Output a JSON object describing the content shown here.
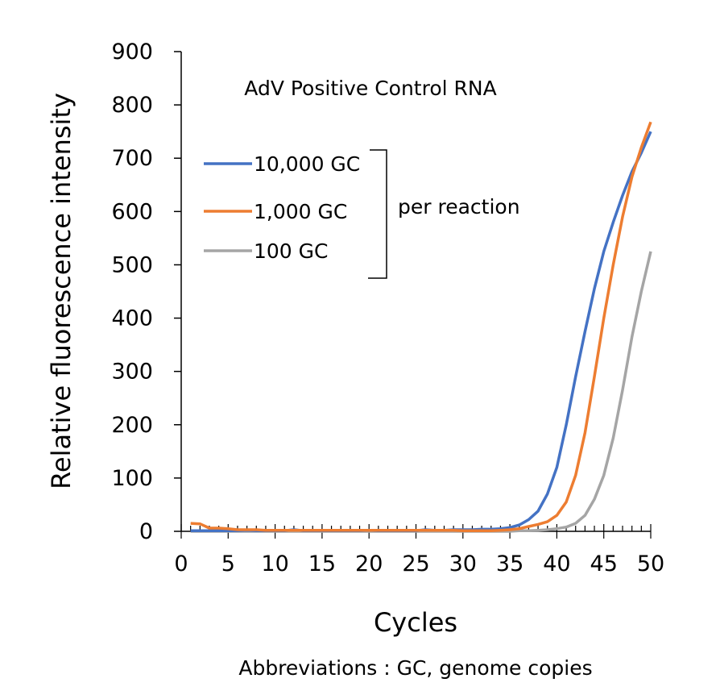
{
  "chart_data": {
    "type": "line",
    "title": "AdV Positive Control RNA",
    "xlabel": "Cycles",
    "ylabel": "Relative fluorescence intensity",
    "xlim": [
      0,
      50
    ],
    "ylim": [
      0,
      900
    ],
    "xticks": [
      "0",
      "5",
      "10",
      "15",
      "20",
      "25",
      "30",
      "35",
      "40",
      "45",
      "50"
    ],
    "yticks": [
      "0",
      "100",
      "200",
      "300",
      "400",
      "500",
      "600",
      "700",
      "800",
      "900"
    ],
    "grid": false,
    "legend_note": "per reaction",
    "footnote": "Abbreviations : GC, genome copies",
    "x": [
      1,
      2,
      3,
      4,
      5,
      6,
      7,
      8,
      9,
      10,
      11,
      12,
      13,
      14,
      15,
      16,
      17,
      18,
      19,
      20,
      21,
      22,
      23,
      24,
      25,
      26,
      27,
      28,
      29,
      30,
      31,
      32,
      33,
      34,
      35,
      36,
      37,
      38,
      39,
      40,
      41,
      42,
      43,
      44,
      45,
      46,
      47,
      48,
      49,
      50
    ],
    "series": [
      {
        "name": "10,000 GC",
        "color": "#4472C4",
        "values": [
          1,
          1,
          1,
          1,
          1,
          1,
          2,
          1,
          1,
          1,
          1,
          3,
          1,
          1,
          1,
          1,
          1,
          1,
          1,
          2,
          1,
          1,
          1,
          1,
          1,
          3,
          2,
          2,
          3,
          3,
          3,
          4,
          4,
          5,
          7,
          12,
          22,
          38,
          70,
          120,
          200,
          290,
          375,
          455,
          525,
          580,
          630,
          675,
          710,
          750
        ]
      },
      {
        "name": "1,000 GC",
        "color": "#ED7D31",
        "values": [
          15,
          14,
          6,
          6,
          5,
          3,
          3,
          3,
          2,
          2,
          2,
          2,
          2,
          2,
          2,
          2,
          2,
          2,
          2,
          2,
          2,
          2,
          2,
          2,
          2,
          2,
          2,
          2,
          2,
          1,
          1,
          1,
          1,
          2,
          3,
          5,
          9,
          13,
          18,
          30,
          55,
          105,
          185,
          290,
          400,
          500,
          590,
          665,
          720,
          768
        ]
      },
      {
        "name": "100 GC",
        "color": "#A5A5A5",
        "values": [
          0,
          0,
          0,
          0,
          0,
          0,
          0,
          0,
          0,
          0,
          0,
          0,
          0,
          0,
          0,
          0,
          0,
          0,
          0,
          0,
          0,
          0,
          0,
          0,
          0,
          0,
          0,
          0,
          0,
          0,
          0,
          0,
          0,
          0,
          0,
          1,
          1,
          2,
          3,
          5,
          8,
          15,
          30,
          60,
          105,
          175,
          265,
          365,
          450,
          525
        ]
      }
    ]
  }
}
